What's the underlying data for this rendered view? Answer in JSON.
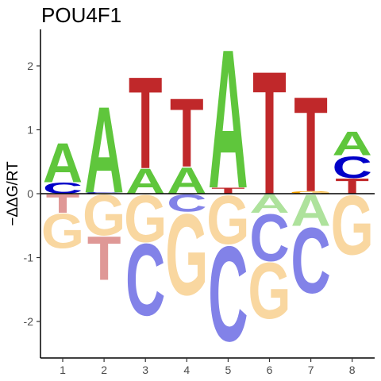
{
  "chart_data": {
    "type": "sequence-logo",
    "title": "POU4F1",
    "ylabel": "−ΔΔG/RT",
    "ylim": [
      -2.5,
      2.5
    ],
    "yticks": [
      -2,
      -1,
      0,
      1,
      2
    ],
    "xticks": [
      "1",
      "2",
      "3",
      "4",
      "5",
      "6",
      "7",
      "8"
    ],
    "colors": {
      "A": "#5fc63c",
      "C": "#0000c8",
      "G": "#f6a400",
      "T": "#c0282a",
      "A_neg": "#aee29c",
      "C_neg": "#8282e8",
      "G_neg": "#f9d7a0",
      "T_neg": "#df9896"
    },
    "positions": [
      {
        "pos": "1",
        "positive": [
          {
            "base": "C",
            "value": 0.18
          },
          {
            "base": "A",
            "value": 0.63
          }
        ],
        "negative": [
          {
            "base": "T",
            "value": 0.3
          },
          {
            "base": "G",
            "value": 0.55
          }
        ]
      },
      {
        "pos": "2",
        "positive": [
          {
            "base": "C",
            "value": 0.02
          },
          {
            "base": "A",
            "value": 1.38
          }
        ],
        "negative": [
          {
            "base": "G",
            "value": 0.65
          },
          {
            "base": "T",
            "value": 0.7
          }
        ]
      },
      {
        "pos": "3",
        "positive": [
          {
            "base": "A",
            "value": 0.4
          },
          {
            "base": "T",
            "value": 1.47
          }
        ],
        "negative": [
          {
            "base": "G",
            "value": 0.75
          },
          {
            "base": "C",
            "value": 1.15
          }
        ]
      },
      {
        "pos": "4",
        "positive": [
          {
            "base": "A",
            "value": 0.42
          },
          {
            "base": "T",
            "value": 1.1
          }
        ],
        "negative": [
          {
            "base": "C",
            "value": 0.28
          },
          {
            "base": "G",
            "value": 1.3
          }
        ]
      },
      {
        "pos": "5",
        "positive": [
          {
            "base": "T",
            "value": 0.1
          },
          {
            "base": "A",
            "value": 2.22
          }
        ],
        "negative": [
          {
            "base": "G",
            "value": 0.78
          },
          {
            "base": "C",
            "value": 1.52
          }
        ]
      },
      {
        "pos": "6",
        "positive": [
          {
            "base": "T",
            "value": 1.97
          }
        ],
        "negative": [
          {
            "base": "A",
            "value": 0.3
          },
          {
            "base": "C",
            "value": 0.75
          },
          {
            "base": "G",
            "value": 0.9
          }
        ]
      },
      {
        "pos": "7",
        "positive": [
          {
            "base": "G",
            "value": 0.04
          },
          {
            "base": "T",
            "value": 1.52
          }
        ],
        "negative": [
          {
            "base": "A",
            "value": 0.5
          },
          {
            "base": "C",
            "value": 1.05
          }
        ]
      },
      {
        "pos": "8",
        "positive": [
          {
            "base": "T",
            "value": 0.25
          },
          {
            "base": "C",
            "value": 0.35
          },
          {
            "base": "A",
            "value": 0.38
          }
        ],
        "negative": [
          {
            "base": "G",
            "value": 0.95
          }
        ]
      }
    ]
  }
}
